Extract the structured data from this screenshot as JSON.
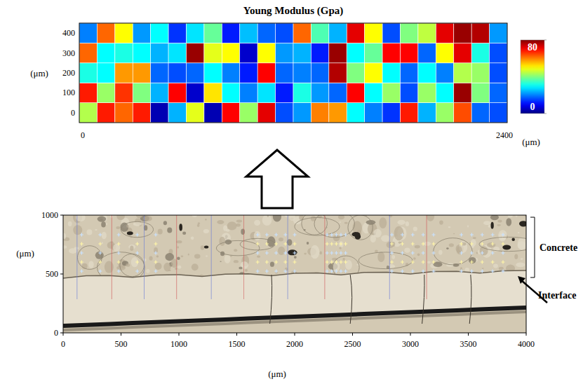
{
  "chart_data": [
    {
      "type": "heatmap",
      "title": "Young Modulus (Gpa)",
      "xlabel": "(μm)",
      "ylabel": "(μm)",
      "x": [
        50,
        150,
        250,
        350,
        450,
        550,
        650,
        750,
        850,
        950,
        1050,
        1150,
        1250,
        1350,
        1450,
        1550,
        1650,
        1750,
        1850,
        1950,
        2050,
        2150,
        2250,
        2350
      ],
      "y": [
        0,
        100,
        200,
        300,
        400
      ],
      "cells": [
        [
          44,
          68,
          62,
          68,
          4,
          24,
          48,
          4,
          70,
          42,
          72,
          16,
          22,
          60,
          58,
          30,
          20,
          14,
          68,
          24,
          42,
          64,
          18,
          16
        ],
        [
          68,
          42,
          66,
          40,
          24,
          70,
          6,
          52,
          30,
          20,
          28,
          12,
          32,
          22,
          18,
          70,
          30,
          42,
          16,
          42,
          30,
          78,
          40,
          18
        ],
        [
          32,
          30,
          58,
          58,
          18,
          16,
          18,
          30,
          20,
          12,
          70,
          18,
          20,
          18,
          76,
          40,
          50,
          30,
          18,
          30,
          20,
          44,
          42,
          16
        ],
        [
          62,
          30,
          32,
          30,
          24,
          28,
          78,
          48,
          50,
          6,
          50,
          22,
          24,
          12,
          78,
          30,
          38,
          70,
          70,
          18,
          50,
          72,
          32,
          16
        ],
        [
          20,
          62,
          50,
          22,
          30,
          14,
          28,
          38,
          12,
          25,
          18,
          16,
          62,
          36,
          24,
          72,
          50,
          16,
          40,
          45,
          72,
          78,
          76,
          22
        ]
      ],
      "xlim": [
        0,
        2400
      ],
      "xticks": [
        0,
        2400
      ],
      "ylim": [
        -50,
        450
      ],
      "yticks": [
        0,
        100,
        200,
        300,
        400
      ],
      "colorbar_range": [
        0,
        80
      ],
      "colorbar_ticks": [
        0,
        80
      ]
    },
    {
      "type": "image",
      "xlabel": "(μm)",
      "ylabel": "(μm)",
      "xlim": [
        0,
        4000
      ],
      "xticks": [
        0,
        500,
        1000,
        1500,
        2000,
        2500,
        3000,
        3500,
        4000
      ],
      "ylim": [
        0,
        1000
      ],
      "yticks": [
        0,
        500,
        1000
      ],
      "annotations": [
        "Concrete",
        "Interface"
      ]
    }
  ]
}
